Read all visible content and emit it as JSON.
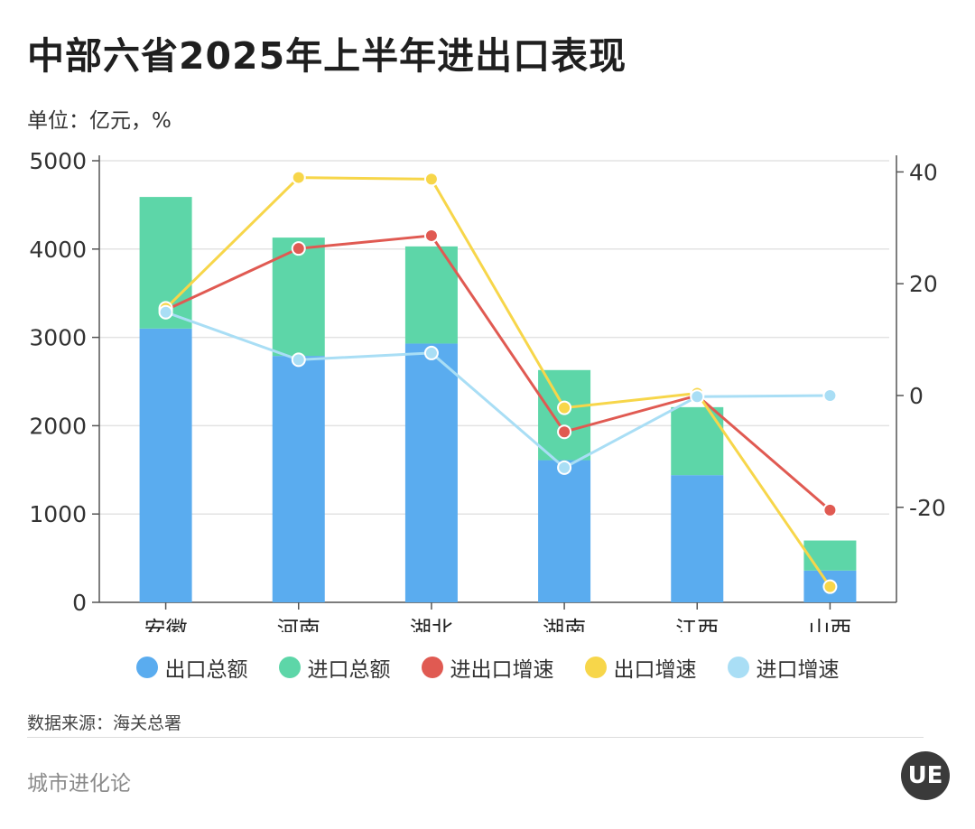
{
  "title": "中部六省2025年上半年进出口表现",
  "unit": "单位：亿元，%",
  "source": "数据来源：海关总署",
  "brand": "城市进化论",
  "logo_text": "UE",
  "colors": {
    "export_total": "#5aacef",
    "import_total": "#5dd6a8",
    "total_growth": "#e05a52",
    "export_growth": "#f7d64a",
    "import_growth": "#a9def5",
    "axis": "#555555",
    "grid": "#e3e3e3"
  },
  "chart_data": {
    "type": "bar",
    "stacked": true,
    "categories": [
      "安徽",
      "河南",
      "湖北",
      "湖南",
      "江西",
      "山西"
    ],
    "series": [
      {
        "name": "出口总额",
        "kind": "bar",
        "axis": "left",
        "color": "#5aacef",
        "values": [
          3100,
          2790,
          2930,
          1610,
          1440,
          360
        ]
      },
      {
        "name": "进口总额",
        "kind": "bar",
        "axis": "left",
        "color": "#5dd6a8",
        "values": [
          1490,
          1340,
          1100,
          1020,
          770,
          340
        ]
      },
      {
        "name": "进出口增速",
        "kind": "line",
        "axis": "right",
        "color": "#e05a52",
        "values": [
          15.3,
          26.3,
          28.6,
          -6.5,
          0,
          -20.5
        ]
      },
      {
        "name": "出口增速",
        "kind": "line",
        "axis": "right",
        "color": "#f7d64a",
        "values": [
          15.6,
          39.0,
          38.7,
          -2.2,
          0.4,
          -34.2
        ]
      },
      {
        "name": "进口增速",
        "kind": "line",
        "axis": "right",
        "color": "#a9def5",
        "values": [
          14.9,
          6.4,
          7.6,
          -12.9,
          -0.2,
          0
        ]
      }
    ],
    "left_axis": {
      "ylim": [
        0,
        5000
      ],
      "ticks": [
        0,
        1000,
        2000,
        3000,
        4000,
        5000
      ]
    },
    "right_axis": {
      "ylim": [
        -37,
        42
      ],
      "ticks": [
        -20,
        0,
        20,
        40
      ]
    },
    "grid": true,
    "legend": "bottom"
  }
}
